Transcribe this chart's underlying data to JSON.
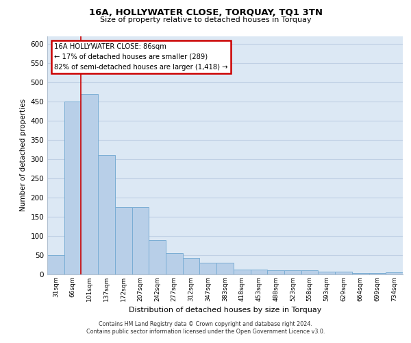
{
  "title1": "16A, HOLLYWATER CLOSE, TORQUAY, TQ1 3TN",
  "title2": "Size of property relative to detached houses in Torquay",
  "xlabel": "Distribution of detached houses by size in Torquay",
  "ylabel": "Number of detached properties",
  "categories": [
    "31sqm",
    "66sqm",
    "101sqm",
    "137sqm",
    "172sqm",
    "207sqm",
    "242sqm",
    "277sqm",
    "312sqm",
    "347sqm",
    "383sqm",
    "418sqm",
    "453sqm",
    "488sqm",
    "523sqm",
    "558sqm",
    "593sqm",
    "629sqm",
    "664sqm",
    "699sqm",
    "734sqm"
  ],
  "values": [
    50,
    450,
    470,
    310,
    175,
    175,
    90,
    55,
    42,
    30,
    30,
    13,
    12,
    10,
    10,
    10,
    7,
    7,
    3,
    3,
    5
  ],
  "bar_color": "#b8cfe8",
  "bar_edge_color": "#7aadd4",
  "grid_color": "#c0d0e4",
  "bg_color": "#dce8f4",
  "annotation_text": "16A HOLLYWATER CLOSE: 86sqm\n← 17% of detached houses are smaller (289)\n82% of semi-detached houses are larger (1,418) →",
  "annotation_box_color": "#cc0000",
  "footer1": "Contains HM Land Registry data © Crown copyright and database right 2024.",
  "footer2": "Contains public sector information licensed under the Open Government Licence v3.0.",
  "ylim": [
    0,
    620
  ],
  "yticks": [
    0,
    50,
    100,
    150,
    200,
    250,
    300,
    350,
    400,
    450,
    500,
    550,
    600
  ],
  "red_line_x": 1.5
}
